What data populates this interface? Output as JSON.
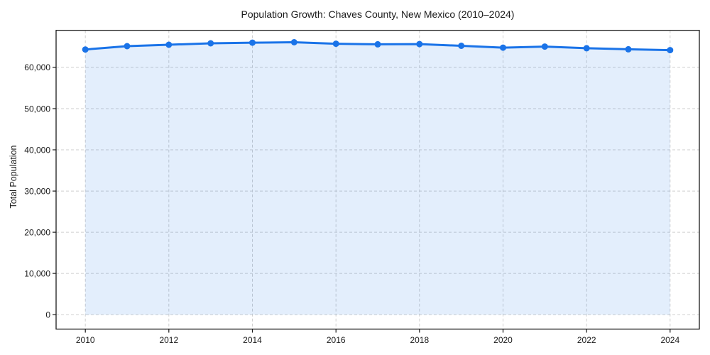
{
  "chart_data": {
    "type": "line",
    "title": "Population Growth: Chaves County, New Mexico (2010–2024)",
    "xlabel": "",
    "ylabel": "Total Population",
    "x": [
      2010,
      2011,
      2012,
      2013,
      2014,
      2015,
      2016,
      2017,
      2018,
      2019,
      2020,
      2021,
      2022,
      2023,
      2024
    ],
    "series": [
      {
        "name": "Total Population",
        "values": [
          64350,
          65150,
          65500,
          65850,
          66000,
          66100,
          65750,
          65600,
          65650,
          65250,
          64800,
          65050,
          64650,
          64400,
          64200
        ]
      }
    ],
    "xticks": [
      2010,
      2012,
      2014,
      2016,
      2018,
      2020,
      2022,
      2024
    ],
    "yticks": [
      0,
      10000,
      20000,
      30000,
      40000,
      50000,
      60000
    ],
    "xlim": [
      2009.3,
      2024.7
    ],
    "ylim": [
      -3500,
      69000
    ],
    "grid": true,
    "grid_style": "dashed",
    "legend_position": "none",
    "marker": "circle",
    "colors": {
      "line": "#1a73e8",
      "marker": "#1a73e8",
      "area_fill": "#1a73e8",
      "area_fill_opacity": 0.12,
      "grid": "#cfcfcf",
      "axis": "#1a1a1a",
      "text": "#1a1a1a",
      "background": "#ffffff"
    }
  }
}
